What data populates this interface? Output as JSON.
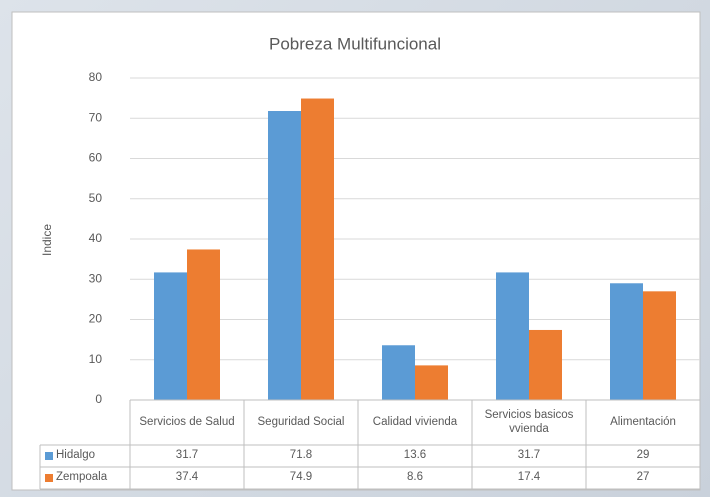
{
  "chart_data": {
    "type": "bar",
    "title": "Pobreza Multifuncional",
    "y_label": "Indice",
    "categories": [
      "Servicios de Salud",
      "Seguridad Social",
      "Calidad vivienda",
      "Servicios basicos vvienda",
      "Alimentación"
    ],
    "series": [
      {
        "name": "Hidalgo",
        "color": "#5b9bd5",
        "values": [
          31.7,
          71.8,
          13.6,
          31.7,
          29
        ]
      },
      {
        "name": "Zempoala",
        "color": "#ed7d31",
        "values": [
          37.4,
          74.9,
          8.6,
          17.4,
          27
        ]
      }
    ],
    "ylim": [
      0,
      80
    ],
    "yticks": [
      0,
      10,
      20,
      30,
      40,
      50,
      60,
      70,
      80
    ],
    "grid": true,
    "data_table": true
  }
}
